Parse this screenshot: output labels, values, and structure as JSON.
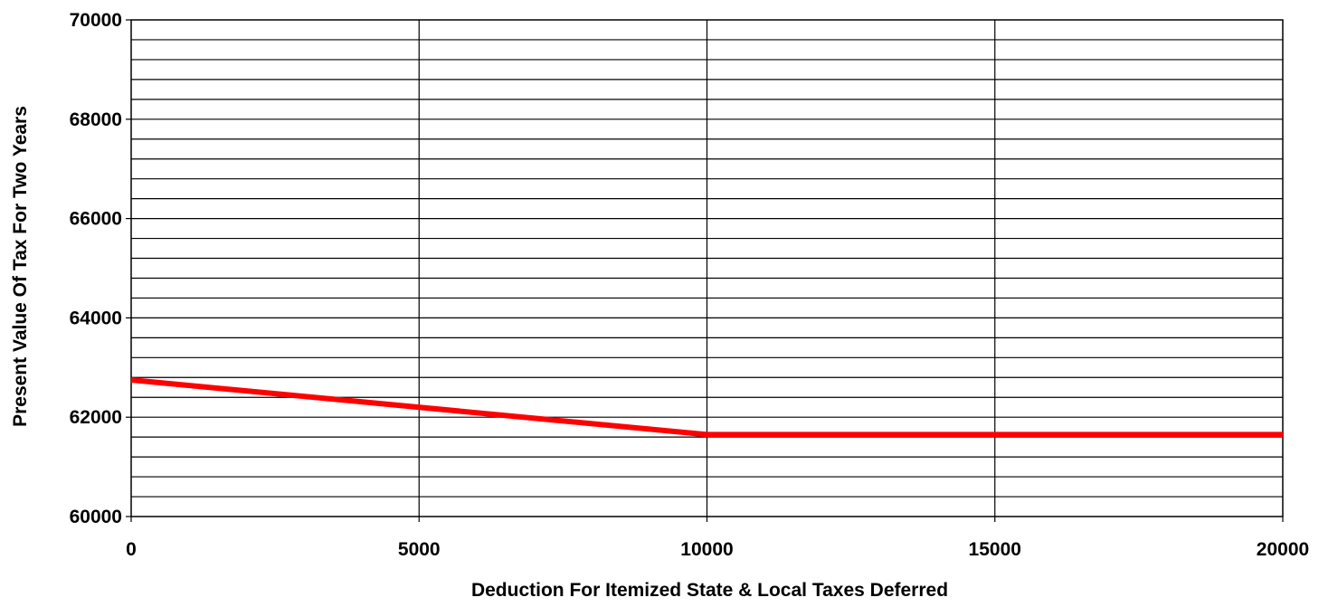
{
  "chart_data": {
    "type": "line",
    "title": "",
    "xlabel": "Deduction For Itemized State & Local Taxes Deferred",
    "ylabel": "Present Value Of Tax  For Two Years",
    "xlim": [
      0,
      20000
    ],
    "ylim": [
      60000,
      70000
    ],
    "x_ticks": [
      0,
      5000,
      10000,
      15000,
      20000
    ],
    "y_ticks": [
      60000,
      62000,
      64000,
      66000,
      68000,
      70000
    ],
    "y_gridline_step": 400,
    "grid": true,
    "legend": "none",
    "series": [
      {
        "color": "#ff0000",
        "x": [
          0,
          10000,
          20000
        ],
        "y": [
          62750,
          61650,
          61650
        ]
      }
    ]
  }
}
